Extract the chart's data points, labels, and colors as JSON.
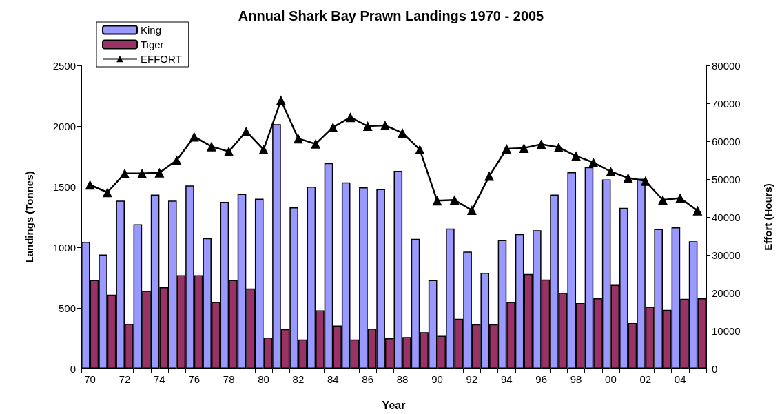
{
  "chart_data": {
    "type": "bar",
    "title": "Annual Shark Bay Prawn Landings 1970 - 2005",
    "xlabel": "Year",
    "ylabel": "Landings (Tonnes)",
    "y2label": "Effort (Hours)",
    "categories": [
      "70",
      null,
      "72",
      null,
      "74",
      null,
      "76",
      null,
      "78",
      null,
      "80",
      null,
      "82",
      null,
      "84",
      null,
      "86",
      null,
      "88",
      null,
      "90",
      null,
      "92",
      null,
      "94",
      null,
      "96",
      null,
      "98",
      null,
      "00",
      null,
      "02",
      null,
      "04",
      null
    ],
    "series": [
      {
        "name": "King",
        "color": "#9999ff",
        "values": [
          1045,
          940,
          1385,
          1190,
          1435,
          1385,
          1510,
          1075,
          1375,
          1440,
          1400,
          2015,
          1330,
          1500,
          1695,
          1535,
          1495,
          1480,
          1630,
          1070,
          730,
          1155,
          965,
          790,
          1060,
          1110,
          1140,
          1435,
          1620,
          1660,
          1560,
          1325,
          1565,
          1150,
          1165,
          1050
        ]
      },
      {
        "name": "Tiger",
        "color": "#993366",
        "values": [
          730,
          610,
          370,
          640,
          670,
          770,
          770,
          550,
          730,
          660,
          255,
          325,
          240,
          480,
          355,
          240,
          330,
          250,
          260,
          300,
          270,
          410,
          365,
          365,
          550,
          780,
          735,
          625,
          540,
          580,
          690,
          375,
          510,
          485,
          575,
          580
        ]
      },
      {
        "name": "EFFORT",
        "type": "line",
        "axis": "y2",
        "color": "#000000",
        "values": [
          48500,
          46500,
          51500,
          51500,
          51700,
          55000,
          61200,
          58600,
          57300,
          62600,
          57800,
          70800,
          60700,
          59300,
          63700,
          66300,
          64000,
          64200,
          62200,
          57800,
          44300,
          44500,
          41800,
          50800,
          58000,
          58200,
          59200,
          58400,
          56100,
          54400,
          52000,
          50300,
          49500,
          44500,
          45000,
          41700
        ]
      }
    ],
    "ylim": [
      0,
      2500
    ],
    "yticks": [
      0,
      500,
      1000,
      1500,
      2000,
      2500
    ],
    "y2lim": [
      0,
      80000
    ],
    "y2ticks": [
      0,
      10000,
      20000,
      30000,
      40000,
      50000,
      60000,
      70000,
      80000
    ],
    "grid": false,
    "legend": "top left",
    "marker": "triangle",
    "line_style": "solid"
  }
}
